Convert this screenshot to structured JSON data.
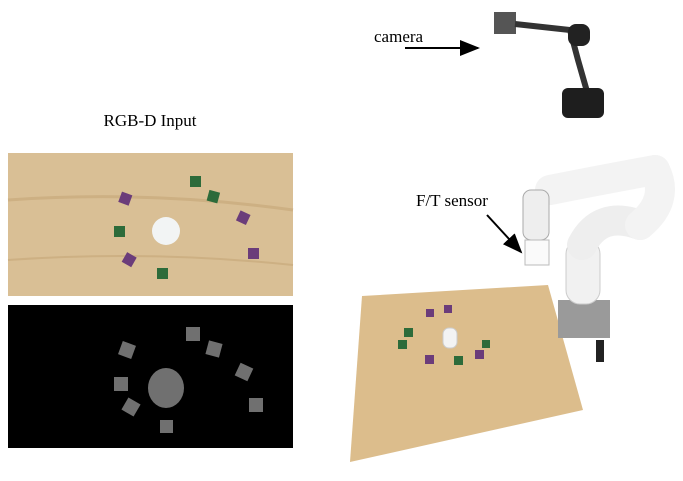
{
  "labels": {
    "camera": "camera",
    "rgbd_input": "RGB-D Input",
    "ft_sensor": "F/T sensor"
  }
}
